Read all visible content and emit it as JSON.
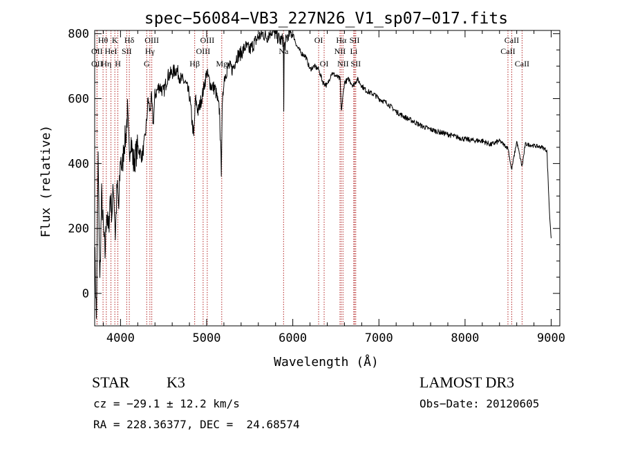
{
  "chart_data": {
    "type": "line",
    "title": "spec−56084−VB3_227N26_V1_sp07−017.fits",
    "xlabel": "Wavelength (Å)",
    "ylabel": "Flux (relative)",
    "xlim": [
      3700,
      9100
    ],
    "ylim": [
      -100,
      810
    ],
    "x_ticks": [
      4000,
      5000,
      6000,
      7000,
      8000,
      9000
    ],
    "y_ticks": [
      0,
      200,
      400,
      600,
      800
    ],
    "line_color": "#000000",
    "line_marker_color": "#b22222",
    "series": [
      {
        "name": "flux",
        "x": [
          3700,
          3720,
          3740,
          3760,
          3780,
          3800,
          3820,
          3840,
          3860,
          3880,
          3900,
          3920,
          3940,
          3960,
          3980,
          4000,
          4020,
          4040,
          4060,
          4080,
          4100,
          4120,
          4150,
          4200,
          4250,
          4280,
          4300,
          4320,
          4340,
          4360,
          4380,
          4400,
          4450,
          4500,
          4550,
          4600,
          4650,
          4700,
          4750,
          4800,
          4850,
          4870,
          4900,
          4950,
          5000,
          5050,
          5100,
          5150,
          5170,
          5180,
          5200,
          5250,
          5300,
          5350,
          5400,
          5450,
          5500,
          5550,
          5600,
          5650,
          5700,
          5750,
          5800,
          5850,
          5890,
          5895,
          5900,
          5950,
          6000,
          6050,
          6100,
          6150,
          6200,
          6250,
          6300,
          6350,
          6400,
          6450,
          6500,
          6550,
          6563,
          6600,
          6650,
          6700,
          6750,
          6800,
          6850,
          6900,
          6950,
          7000,
          7100,
          7200,
          7300,
          7400,
          7500,
          7600,
          7700,
          7800,
          7900,
          8000,
          8100,
          8200,
          8300,
          8400,
          8500,
          8540,
          8600,
          8662,
          8700,
          8800,
          8900,
          8950,
          8980,
          9000
        ],
        "y": [
          150,
          -80,
          420,
          30,
          300,
          200,
          120,
          260,
          180,
          300,
          250,
          330,
          180,
          330,
          260,
          420,
          380,
          460,
          480,
          560,
          430,
          480,
          400,
          450,
          420,
          470,
          520,
          600,
          560,
          600,
          520,
          610,
          640,
          620,
          670,
          680,
          690,
          660,
          650,
          610,
          480,
          600,
          560,
          610,
          680,
          640,
          630,
          560,
          380,
          560,
          660,
          700,
          690,
          730,
          740,
          760,
          750,
          770,
          790,
          800,
          790,
          810,
          800,
          780,
          780,
          560,
          760,
          800,
          800,
          760,
          740,
          730,
          690,
          700,
          690,
          650,
          640,
          680,
          670,
          660,
          560,
          650,
          660,
          640,
          660,
          640,
          625,
          618,
          612,
          600,
          585,
          560,
          543,
          530,
          515,
          505,
          497,
          490,
          482,
          475,
          471,
          470,
          458,
          470,
          447,
          380,
          468,
          390,
          460,
          455,
          450,
          440,
          250,
          170
        ]
      }
    ],
    "line_labels": [
      {
        "wavelength": 3797,
        "label": "Hθ",
        "row": 1
      },
      {
        "wavelength": 3727,
        "label": "OII",
        "row": 2
      },
      {
        "wavelength": 3727,
        "label": "OII",
        "row": 3
      },
      {
        "wavelength": 3835,
        "label": "Hη",
        "row": 3
      },
      {
        "wavelength": 3889,
        "label": "HeI",
        "row": 2
      },
      {
        "wavelength": 3934,
        "label": "K",
        "row": 1
      },
      {
        "wavelength": 3969,
        "label": "H",
        "row": 3
      },
      {
        "wavelength": 4072,
        "label": "SII",
        "row": 2
      },
      {
        "wavelength": 4102,
        "label": "Hδ",
        "row": 1
      },
      {
        "wavelength": 4304,
        "label": "G",
        "row": 3
      },
      {
        "wavelength": 4341,
        "label": "Hγ",
        "row": 2
      },
      {
        "wavelength": 4363,
        "label": "OIII",
        "row": 1
      },
      {
        "wavelength": 4861,
        "label": "Hβ",
        "row": 3
      },
      {
        "wavelength": 4959,
        "label": "OIII",
        "row": 2
      },
      {
        "wavelength": 5007,
        "label": "OIII",
        "row": 1
      },
      {
        "wavelength": 5175,
        "label": "Mg",
        "row": 3
      },
      {
        "wavelength": 5893,
        "label": "Na",
        "row": 2
      },
      {
        "wavelength": 6300,
        "label": "OI",
        "row": 1
      },
      {
        "wavelength": 6364,
        "label": "OI",
        "row": 3
      },
      {
        "wavelength": 6548,
        "label": "NII",
        "row": 2
      },
      {
        "wavelength": 6563,
        "label": "Hα",
        "row": 1
      },
      {
        "wavelength": 6583,
        "label": "NII",
        "row": 3
      },
      {
        "wavelength": 6708,
        "label": "Li",
        "row": 2
      },
      {
        "wavelength": 6717,
        "label": "SII",
        "row": 1
      },
      {
        "wavelength": 6731,
        "label": "SII",
        "row": 3
      },
      {
        "wavelength": 8498,
        "label": "CaII",
        "row": 2
      },
      {
        "wavelength": 8542,
        "label": "CaII",
        "row": 1
      },
      {
        "wavelength": 8662,
        "label": "CaII",
        "row": 3
      }
    ]
  },
  "footer": {
    "object_class": "STAR",
    "subclass": "K3",
    "survey": "LAMOST DR3",
    "redshift": "cz = −29.1 ± 12.2 km/s",
    "obs_date": "Obs−Date: 20120605",
    "coordinates": "RA = 228.36377, DEC =  24.68574"
  }
}
